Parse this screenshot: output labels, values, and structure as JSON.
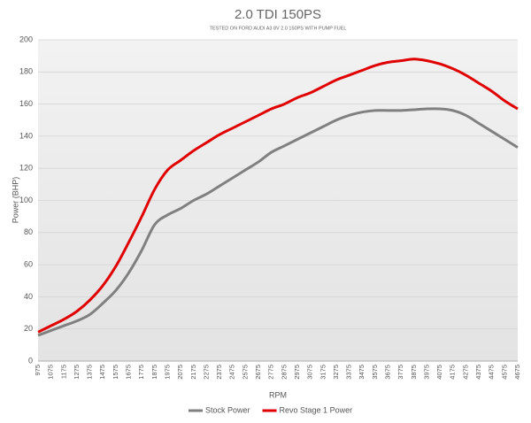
{
  "chart_data": {
    "type": "line",
    "title": "2.0 TDI 150PS",
    "subtitle": "TESTED ON FORD AUDI A3 8V 2.0 150PS WITH PUMP FUEL",
    "x_label": "RPM",
    "y_label": "Power (BHP)",
    "x": [
      975,
      1075,
      1175,
      1275,
      1375,
      1475,
      1575,
      1675,
      1775,
      1875,
      1975,
      2075,
      2175,
      2275,
      2375,
      2475,
      2575,
      2675,
      2775,
      2875,
      2975,
      3075,
      3175,
      3275,
      3375,
      3475,
      3575,
      3675,
      3775,
      3875,
      3975,
      4075,
      4175,
      4275,
      4375,
      4475,
      4575,
      4675
    ],
    "xlim": [
      975,
      4675
    ],
    "series": [
      {
        "name": "Stock Power",
        "color": "#808080",
        "values": [
          16,
          19,
          22,
          25,
          29,
          36,
          44,
          55,
          69,
          85,
          91,
          95,
          100,
          104,
          109,
          114,
          119,
          124,
          130,
          134,
          138,
          142,
          146,
          150,
          153,
          155,
          156,
          156,
          156,
          156.5,
          157,
          157,
          156,
          153,
          148,
          143,
          138,
          133
        ]
      },
      {
        "name": "Revo Stage 1 Power",
        "color": "#e00000",
        "values": [
          18,
          22,
          26,
          31,
          38,
          47,
          59,
          74,
          90,
          107,
          119,
          125,
          131,
          136,
          141,
          145,
          149,
          153,
          157,
          160,
          164,
          167,
          171,
          175,
          178,
          181,
          184,
          186,
          187,
          188,
          187,
          185,
          182,
          178,
          173,
          168,
          162,
          157
        ]
      }
    ],
    "ylim": [
      0,
      200
    ],
    "yticks": [
      0,
      20,
      40,
      60,
      80,
      100,
      120,
      140,
      160,
      180,
      200
    ],
    "grid": true,
    "legend": "bottom"
  }
}
